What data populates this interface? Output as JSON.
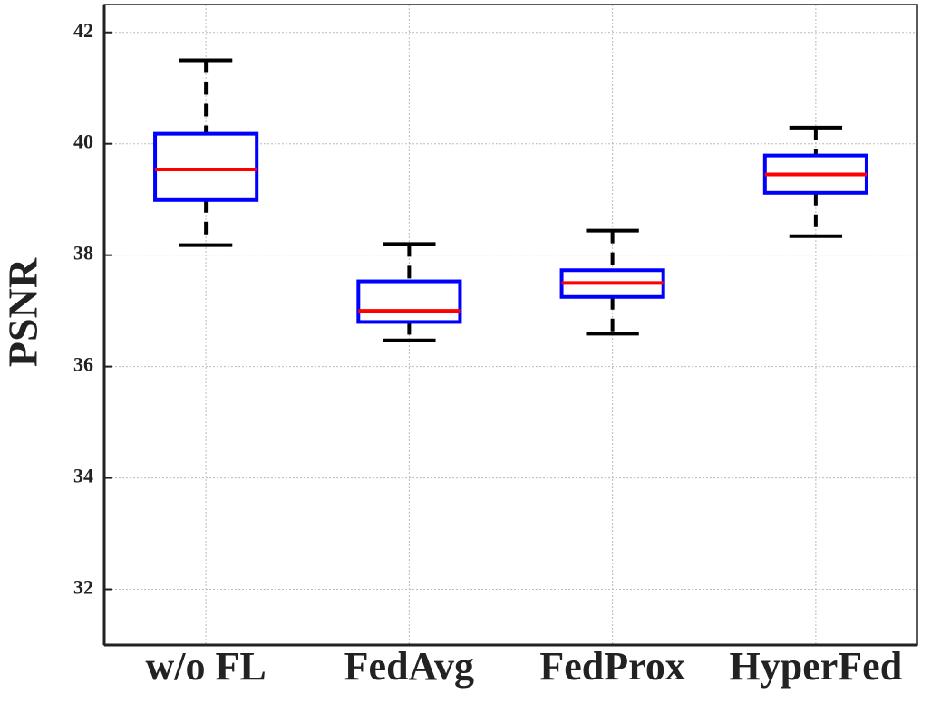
{
  "chart_data": {
    "type": "box",
    "ylabel": "PSNR",
    "categories": [
      "w/o FL",
      "FedAvg",
      "FedProx",
      "HyperFed"
    ],
    "boxes": [
      {
        "whisker_low": 38.18,
        "q1": 38.99,
        "median": 39.54,
        "q3": 40.18,
        "whisker_high": 41.5
      },
      {
        "whisker_low": 36.47,
        "q1": 36.8,
        "median": 37.0,
        "q3": 37.53,
        "whisker_high": 38.2
      },
      {
        "whisker_low": 36.59,
        "q1": 37.25,
        "median": 37.5,
        "q3": 37.73,
        "whisker_high": 38.44
      },
      {
        "whisker_low": 38.34,
        "q1": 39.12,
        "median": 39.45,
        "q3": 39.79,
        "whisker_high": 40.29
      }
    ],
    "box_color": "#0000ff",
    "median_color": "#ff0000",
    "whisker_color": "#000000",
    "ylim": [
      31.0,
      42.5
    ],
    "yticks": [
      32,
      34,
      36,
      38,
      40,
      42
    ],
    "grid": true
  }
}
